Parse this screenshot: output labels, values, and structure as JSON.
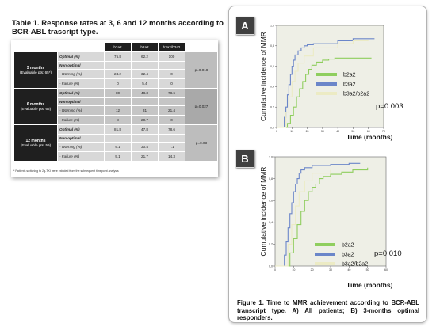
{
  "table": {
    "title": "Table 1. Response rates at 3, 6 and 12 months according to BCR-ABL trascript type.",
    "headers": [
      "b3a2",
      "b2a2",
      "b3a2/b2a2"
    ],
    "footnote": "* Patients switching to 2g-TKI were exluded from the subsequent timepoint analysis",
    "groups": [
      {
        "label": "3 months",
        "sublabel": "(Evaluable pts: 65*)",
        "pvalue": "p=0.018",
        "rows": [
          {
            "label": "Optimal (%)",
            "values": [
              "75.8",
              "62.2",
              "100"
            ]
          },
          {
            "label": "Non optimal",
            "values": [
              "",
              "",
              ""
            ]
          },
          {
            "label": "- Warning (%)",
            "values": [
              "24.2",
              "32.4",
              "0"
            ]
          },
          {
            "label": "- Failure (%)",
            "values": [
              "0",
              "5.4",
              "0"
            ]
          }
        ]
      },
      {
        "label": "6 months",
        "sublabel": "(Evaluable pts: 66)",
        "pvalue": "p=0.027",
        "rows": [
          {
            "label": "Optimal (%)",
            "values": [
              "80",
              "48.3",
              "78.6"
            ]
          },
          {
            "label": "Non optimal",
            "values": [
              "",
              "",
              ""
            ]
          },
          {
            "label": "- Warning (%)",
            "values": [
              "12",
              "31",
              "21.4"
            ]
          },
          {
            "label": "- Failure (%)",
            "values": [
              "8",
              "20.7",
              "0"
            ]
          }
        ]
      },
      {
        "label": "12 months",
        "sublabel": "(Evaluable pts: 59)",
        "pvalue": "p=0.03",
        "rows": [
          {
            "label": "Optimal (%)",
            "values": [
              "81.8",
              "47.8",
              "78.6"
            ]
          },
          {
            "label": "Non optimal",
            "values": [
              "",
              "",
              ""
            ]
          },
          {
            "label": "- Warning (%)",
            "values": [
              "9.1",
              "30.4",
              "7.1"
            ]
          },
          {
            "label": "- Failure (%)",
            "values": [
              "9.1",
              "21.7",
              "14.3"
            ]
          }
        ]
      }
    ]
  },
  "figure": {
    "caption": "Figure 1. Time to MMR achievement according to BCR-ABL transcript type. A) All patients; B) 3-months optimal responders."
  },
  "chart_data": [
    {
      "type": "line",
      "panel": "A",
      "xlabel": "Time (months)",
      "ylabel": "Cumulative incidence of MMR",
      "xlim": [
        0,
        70
      ],
      "ylim": [
        0,
        1.0
      ],
      "x_ticks": [
        "0",
        "10",
        "20",
        "30",
        "40",
        "50",
        "60",
        "70"
      ],
      "y_ticks": [
        "0,0",
        "0,2",
        "0,4",
        "0,6",
        "0,8",
        "1,0"
      ],
      "pvalue": "p=0.003",
      "legend_position": "bottom",
      "series": [
        {
          "name": "b2a2",
          "color": "#8fce5e",
          "x": [
            0,
            5,
            7,
            9,
            11,
            13,
            15,
            17,
            19,
            21,
            23,
            26,
            30,
            34,
            38,
            44,
            52,
            62
          ],
          "y": [
            0,
            0,
            0.04,
            0.12,
            0.2,
            0.3,
            0.38,
            0.45,
            0.52,
            0.57,
            0.61,
            0.64,
            0.66,
            0.67,
            0.68,
            0.68,
            0.68,
            0.68
          ]
        },
        {
          "name": "b3a2",
          "color": "#6b86c9",
          "x": [
            0,
            3,
            5,
            6,
            7,
            8,
            9,
            10,
            11,
            12,
            14,
            16,
            18,
            20,
            24,
            30,
            40,
            50,
            64
          ],
          "y": [
            0,
            0,
            0.1,
            0.2,
            0.32,
            0.42,
            0.52,
            0.6,
            0.66,
            0.71,
            0.75,
            0.78,
            0.8,
            0.81,
            0.82,
            0.82,
            0.85,
            0.87,
            0.87
          ]
        },
        {
          "name": "b3a2/b2a2",
          "color": "#ecebc4",
          "x": [
            0,
            4,
            6,
            8,
            10,
            12,
            14,
            18,
            24,
            40,
            50,
            60
          ],
          "y": [
            0,
            0,
            0.15,
            0.3,
            0.45,
            0.55,
            0.63,
            0.7,
            0.78,
            0.82,
            0.85,
            0.85
          ]
        }
      ]
    },
    {
      "type": "line",
      "panel": "B",
      "xlabel": "Time (months)",
      "ylabel": "Cumulative incidence of MMR",
      "xlim": [
        0,
        60
      ],
      "ylim": [
        0,
        1.0
      ],
      "x_ticks": [
        "0",
        "10",
        "20",
        "30",
        "40",
        "50",
        "60"
      ],
      "y_ticks": [
        "0,0",
        "0,2",
        "0,4",
        "0,6",
        "0,8",
        "1,0"
      ],
      "pvalue": "p=0.010",
      "legend_position": "bottom",
      "series": [
        {
          "name": "b2a2",
          "color": "#8fce5e",
          "x": [
            0,
            6,
            8,
            10,
            12,
            14,
            16,
            18,
            20,
            22,
            24,
            26,
            30,
            36,
            42,
            50
          ],
          "y": [
            0,
            0,
            0.12,
            0.25,
            0.38,
            0.5,
            0.6,
            0.68,
            0.72,
            0.75,
            0.8,
            0.82,
            0.84,
            0.86,
            0.88,
            0.9
          ]
        },
        {
          "name": "b3a2",
          "color": "#6b86c9",
          "x": [
            0,
            4,
            5,
            6,
            7,
            8,
            9,
            10,
            11,
            12,
            13,
            14,
            16,
            20,
            30,
            40,
            46
          ],
          "y": [
            0,
            0,
            0.1,
            0.22,
            0.35,
            0.48,
            0.58,
            0.68,
            0.75,
            0.8,
            0.85,
            0.88,
            0.9,
            0.92,
            0.93,
            0.94,
            0.94
          ]
        },
        {
          "name": "b3a2/b2a2",
          "color": "#ecebc4",
          "x": [
            0,
            5,
            7,
            9,
            11,
            13,
            16,
            20,
            30
          ],
          "y": [
            0,
            0,
            0.2,
            0.38,
            0.55,
            0.68,
            0.78,
            0.85,
            0.88
          ]
        }
      ]
    }
  ]
}
